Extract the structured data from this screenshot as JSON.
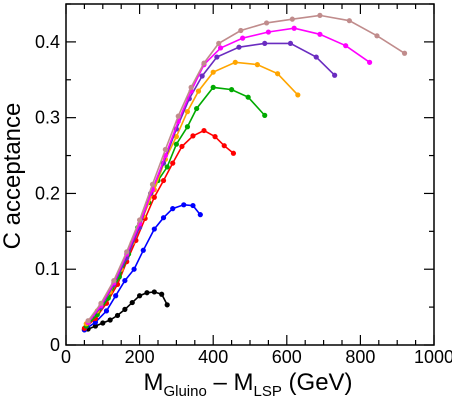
{
  "chart_data": {
    "type": "line",
    "xlabel": {
      "main": "M",
      "sub1": "Gluino",
      "minus": " – M",
      "sub2": "LSP",
      "unit": " (GeV)"
    },
    "ylabel": "C  acceptance",
    "xlim": [
      0,
      1000
    ],
    "ylim": [
      0,
      0.45
    ],
    "x_ticks": [
      0,
      200,
      400,
      600,
      800,
      1000
    ],
    "y_ticks": [
      0,
      0.1,
      0.2,
      0.3,
      0.4
    ],
    "y_tick_labels": [
      "0",
      "0.1",
      "0.2",
      "0.3",
      "0.4"
    ],
    "grid": false,
    "legend": "none",
    "series": [
      {
        "color": "#000000",
        "x": [
          50,
          60,
          80,
          100,
          120,
          140,
          160,
          180,
          200,
          220,
          240,
          260,
          275
        ],
        "y": [
          0.02,
          0.021,
          0.025,
          0.029,
          0.033,
          0.039,
          0.047,
          0.056,
          0.065,
          0.069,
          0.07,
          0.067,
          0.053
        ]
      },
      {
        "color": "#0000ff",
        "x": [
          50,
          80,
          110,
          135,
          160,
          185,
          210,
          240,
          265,
          290,
          320,
          345,
          365
        ],
        "y": [
          0.02,
          0.03,
          0.045,
          0.065,
          0.085,
          0.1,
          0.125,
          0.153,
          0.168,
          0.18,
          0.185,
          0.184,
          0.172
        ]
      },
      {
        "color": "#ff0000",
        "x": [
          50,
          80,
          110,
          140,
          165,
          190,
          215,
          240,
          265,
          290,
          315,
          345,
          375,
          405,
          430,
          455
        ],
        "y": [
          0.022,
          0.035,
          0.055,
          0.08,
          0.11,
          0.138,
          0.167,
          0.195,
          0.217,
          0.24,
          0.262,
          0.276,
          0.283,
          0.275,
          0.263,
          0.253
        ]
      },
      {
        "color": "#00aa00",
        "x": [
          55,
          85,
          115,
          145,
          170,
          195,
          225,
          250,
          275,
          300,
          330,
          355,
          400,
          450,
          495,
          540
        ],
        "y": [
          0.025,
          0.04,
          0.062,
          0.09,
          0.12,
          0.155,
          0.188,
          0.217,
          0.235,
          0.265,
          0.288,
          0.312,
          0.34,
          0.337,
          0.327,
          0.303
        ]
      },
      {
        "color": "#ffa500",
        "x": [
          55,
          85,
          120,
          150,
          180,
          210,
          240,
          270,
          300,
          330,
          360,
          400,
          460,
          520,
          575,
          630
        ],
        "y": [
          0.028,
          0.045,
          0.07,
          0.1,
          0.135,
          0.17,
          0.205,
          0.245,
          0.275,
          0.308,
          0.335,
          0.36,
          0.373,
          0.37,
          0.358,
          0.33
        ]
      },
      {
        "color": "#6a2cc0",
        "x": [
          60,
          95,
          130,
          165,
          200,
          230,
          265,
          300,
          335,
          370,
          410,
          470,
          540,
          610,
          680,
          730
        ],
        "y": [
          0.03,
          0.05,
          0.08,
          0.115,
          0.155,
          0.2,
          0.24,
          0.285,
          0.325,
          0.355,
          0.38,
          0.393,
          0.398,
          0.398,
          0.38,
          0.356
        ]
      },
      {
        "color": "#ff00ff",
        "x": [
          60,
          95,
          130,
          165,
          200,
          235,
          270,
          305,
          340,
          375,
          420,
          480,
          550,
          620,
          690,
          760,
          825
        ],
        "y": [
          0.03,
          0.052,
          0.082,
          0.12,
          0.16,
          0.205,
          0.25,
          0.295,
          0.335,
          0.37,
          0.392,
          0.405,
          0.413,
          0.418,
          0.41,
          0.395,
          0.373
        ]
      },
      {
        "color": "#c08c8c",
        "x": [
          60,
          95,
          130,
          165,
          200,
          235,
          270,
          305,
          340,
          375,
          415,
          475,
          545,
          615,
          690,
          770,
          845,
          920
        ],
        "y": [
          0.032,
          0.055,
          0.085,
          0.123,
          0.165,
          0.212,
          0.258,
          0.302,
          0.34,
          0.372,
          0.398,
          0.415,
          0.425,
          0.43,
          0.435,
          0.428,
          0.408,
          0.385
        ]
      }
    ]
  }
}
